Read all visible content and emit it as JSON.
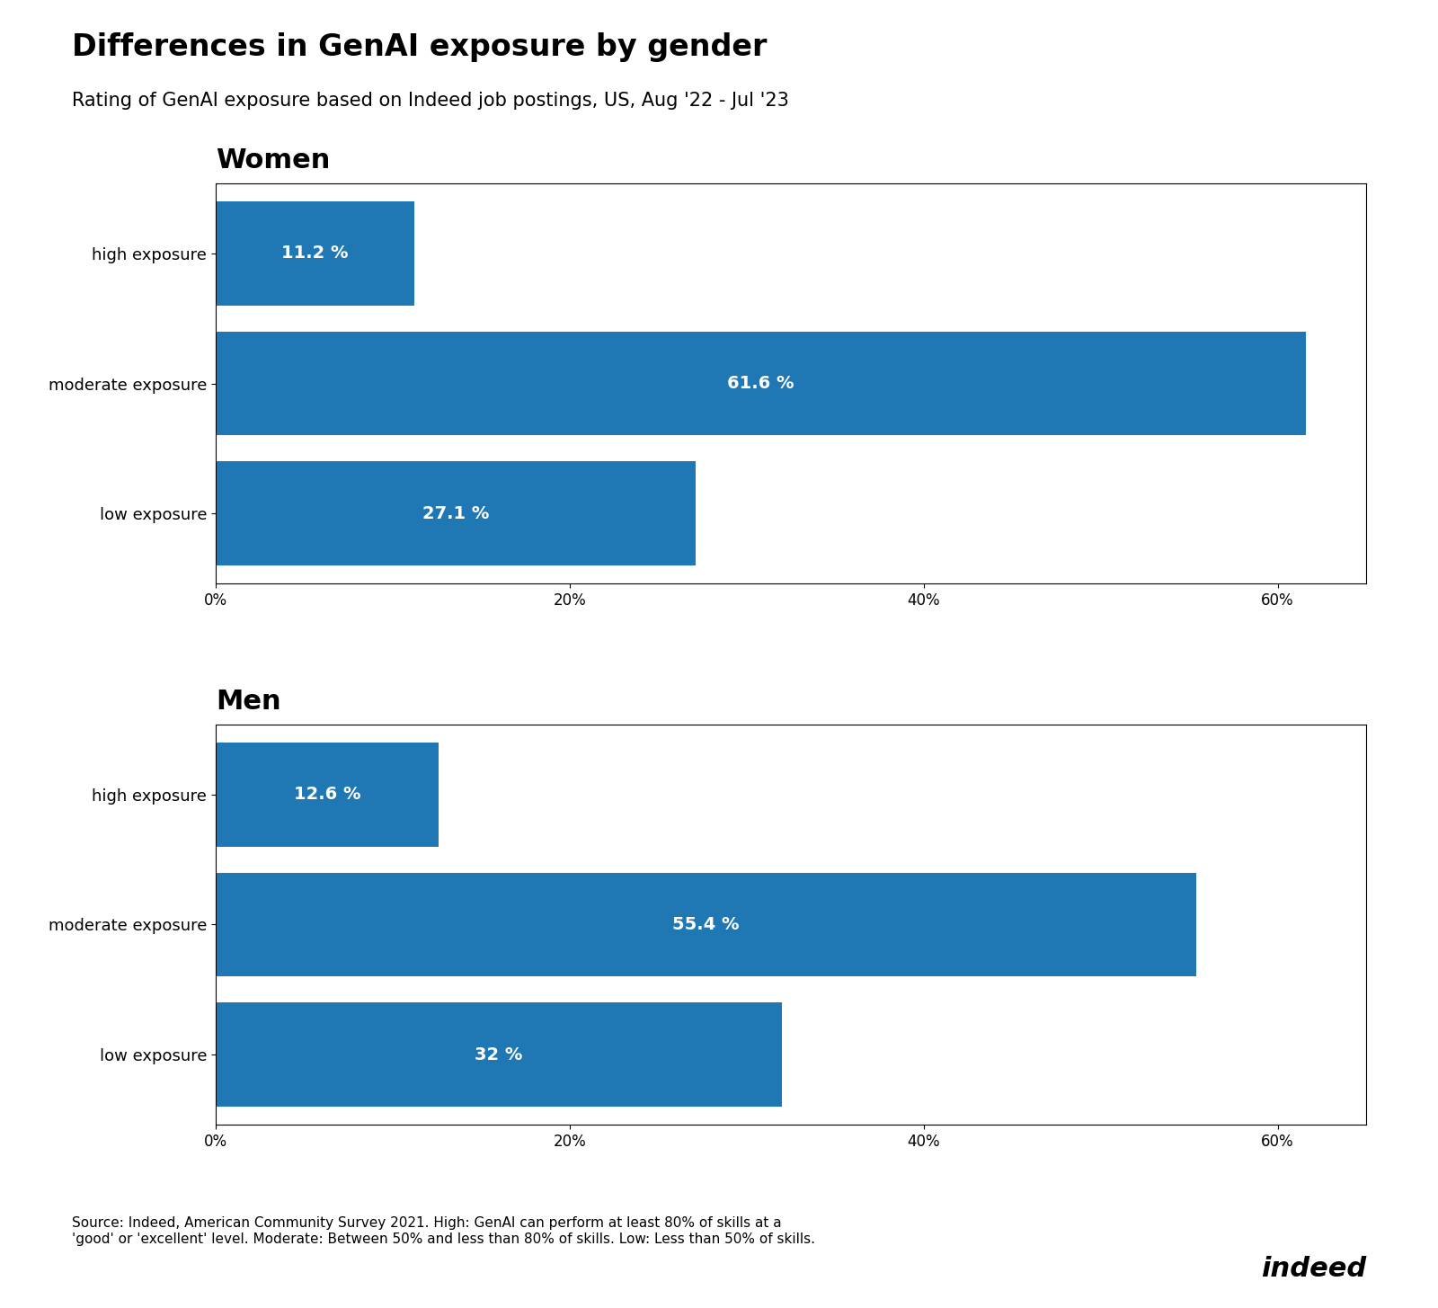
{
  "title": "Differences in GenAI exposure by gender",
  "subtitle": "Rating of GenAI exposure based on Indeed job postings, US, Aug '22 - Jul '23",
  "annotations": [
    "Source: Indeed, American Community Survey 2021. High: GenAI can perform at least 80% of skills at a\n'good' or 'excellent' level. Moderate: Between 50% and less than 80% of skills. Low: Less than 50% of skills.",
    "indeed"
  ],
  "chart_data": [
    {
      "type": "bar",
      "orientation": "horizontal",
      "title": "Women",
      "categories": [
        "high exposure",
        "moderate exposure",
        "low exposure"
      ],
      "values": [
        11.2,
        61.6,
        27.1
      ],
      "value_labels": [
        "11.2 %",
        "61.6 %",
        "27.1 %"
      ],
      "data_labels": true,
      "xlim": [
        0,
        65
      ],
      "xticks": [
        {
          "value": 0,
          "label": "0%"
        },
        {
          "value": 20,
          "label": "20%"
        },
        {
          "value": 40,
          "label": "40%"
        },
        {
          "value": 60,
          "label": "60%"
        }
      ],
      "grid": false
    },
    {
      "type": "bar",
      "orientation": "horizontal",
      "title": "Men",
      "categories": [
        "high exposure",
        "moderate exposure",
        "low exposure"
      ],
      "values": [
        12.6,
        55.4,
        32.0
      ],
      "value_labels": [
        "12.6 %",
        "55.4 %",
        "32 %"
      ],
      "data_labels": true,
      "xlim": [
        0,
        65
      ],
      "xticks": [
        {
          "value": 0,
          "label": "0%"
        },
        {
          "value": 20,
          "label": "20%"
        },
        {
          "value": 40,
          "label": "40%"
        },
        {
          "value": 60,
          "label": "60%"
        }
      ],
      "grid": false
    }
  ]
}
